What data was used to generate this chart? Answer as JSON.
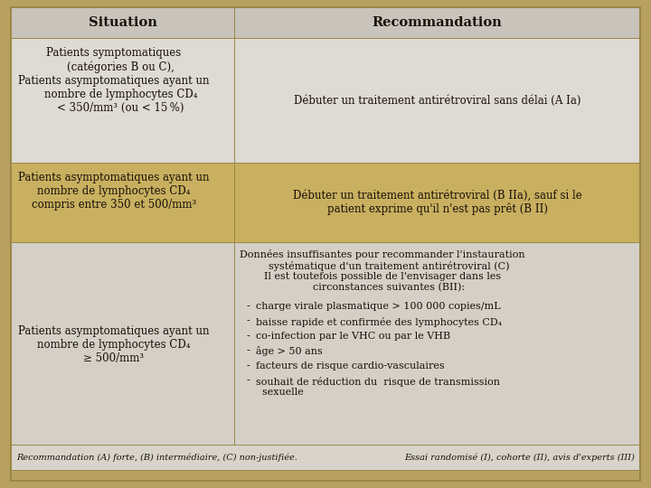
{
  "title_situation": "Situation",
  "title_recommandation": "Recommandation",
  "row1_situation": "Patients symptomatiques\n    (catégories B ou C),\nPatients asymptomatiques ayant un\n    nombre de lymphocytes CD₄\n    < 350/mm³ (ou < 15 %)",
  "row1_recommandation": "Débuter un traitement antirétroviral sans délai (A Ia)",
  "row2_situation": "Patients asymptomatiques ayant un\nnombre de lymphocytes CD₄\ncompris entre 350 et 500/mm³",
  "row2_recommandation": "Débuter un traitement antirétroviral (B IIa), sauf si le\npatient exprime qu'il n'est pas prêt (B II)",
  "row3_situation": "Patients asymptomatiques ayant un\nnombre de lymphocytes CD₄\n≥ 500/mm³",
  "row3_rec_intro": "Données insuffisantes pour recommander l'instauration\n    systématique d'un traitement antirétroviral (C)\nIl est toutefois possible de l'envisager dans les\n    circonstances suivantes (BII):",
  "row3_bullets": [
    "charge virale plasmatique > 100 000 copies/mL",
    "baisse rapide et confirmée des lymphocytes CD₄",
    "co-infection par le VHC ou par le VHB",
    "âge > 50 ans",
    "facteurs de risque cardio-vasculaires",
    "souhait de réduction du  risque de transmission\n  sexuelle"
  ],
  "footer_left": "Recommandation (A) forte, (B) intermédiaire, (C) non-justifiée.",
  "footer_right": "Essai randomisé (I), cohorte (II), avis d'experts (III)",
  "bg_outer": "#b8a060",
  "bg_header": "#c8c4bc",
  "bg_row1": "#dedad4",
  "bg_row2": "#c8b060",
  "bg_row3": "#d4d0c8",
  "bg_footer": "#d8d4cc",
  "text_color": "#1a1008",
  "border_color": "#9a8848"
}
